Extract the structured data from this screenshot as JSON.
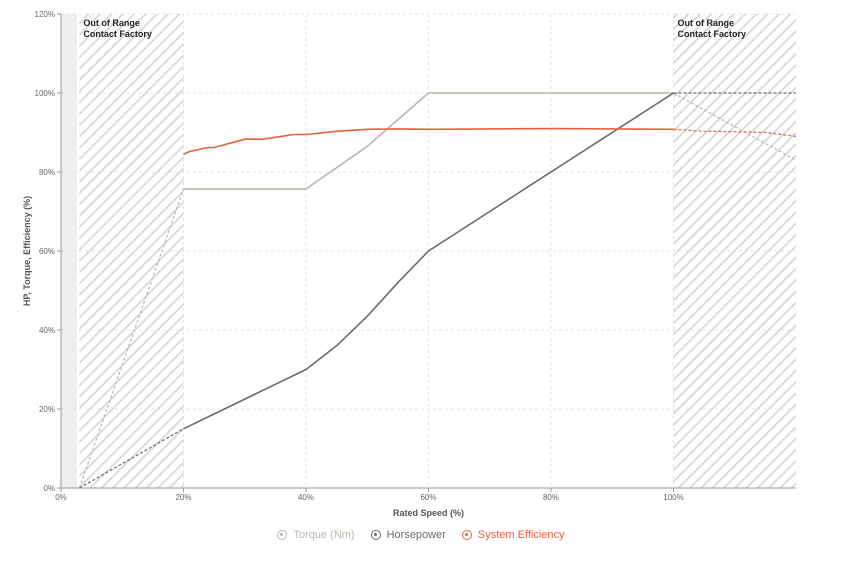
{
  "chart_data": {
    "type": "line",
    "title": "",
    "xlabel": "Rated Speed (%)",
    "ylabel": "HP, Torque, Efficiency (%)",
    "xlim": [
      0,
      120
    ],
    "ylim": [
      0,
      120
    ],
    "x_ticks": [
      {
        "value": 0,
        "label": "0%"
      },
      {
        "value": 20,
        "label": "20%"
      },
      {
        "value": 40,
        "label": "40%"
      },
      {
        "value": 60,
        "label": "60%"
      },
      {
        "value": 80,
        "label": "80%"
      },
      {
        "value": 100,
        "label": "100%"
      }
    ],
    "y_ticks": [
      {
        "value": 0,
        "label": "0%"
      },
      {
        "value": 20,
        "label": "20%"
      },
      {
        "value": 40,
        "label": "40%"
      },
      {
        "value": 60,
        "label": "60%"
      },
      {
        "value": 80,
        "label": "80%"
      },
      {
        "value": 100,
        "label": "100%"
      },
      {
        "value": 120,
        "label": "120%"
      }
    ],
    "grid": true,
    "legend_position": "bottom-center",
    "out_of_range_zones": [
      {
        "x_start": 3,
        "x_end": 20,
        "line1": "Out of Range",
        "line2": "Contact Factory"
      },
      {
        "x_start": 100,
        "x_end": 120,
        "line1": "Out of Range",
        "line2": "Contact Factory"
      }
    ],
    "series": [
      {
        "name": "Torque (Nm)",
        "color": "#bdb5aa",
        "values": [
          {
            "x": 20,
            "y": 75.7
          },
          {
            "x": 40,
            "y": 75.7
          },
          {
            "x": 50,
            "y": 86.5
          },
          {
            "x": 60,
            "y": 100
          },
          {
            "x": 100,
            "y": 100
          }
        ],
        "extension_low": [
          {
            "x": 3,
            "y": 0
          },
          {
            "x": 20,
            "y": 75.7
          }
        ],
        "extension_high": [
          {
            "x": 100,
            "y": 100
          },
          {
            "x": 120,
            "y": 83
          }
        ]
      },
      {
        "name": "Horsepower",
        "color": "#6b6b66",
        "values": [
          {
            "x": 20,
            "y": 15
          },
          {
            "x": 40,
            "y": 30
          },
          {
            "x": 45,
            "y": 36
          },
          {
            "x": 50,
            "y": 43.5
          },
          {
            "x": 55,
            "y": 52
          },
          {
            "x": 60,
            "y": 60
          },
          {
            "x": 100,
            "y": 100
          }
        ],
        "extension_low": [
          {
            "x": 3,
            "y": 0
          },
          {
            "x": 20,
            "y": 15
          }
        ],
        "extension_high": [
          {
            "x": 100,
            "y": 100
          },
          {
            "x": 120,
            "y": 100
          }
        ]
      },
      {
        "name": "System Efficiency",
        "color": "#e8603c",
        "values": [
          {
            "x": 20,
            "y": 84.5
          },
          {
            "x": 21,
            "y": 85.2
          },
          {
            "x": 24,
            "y": 86.2
          },
          {
            "x": 25,
            "y": 86.2
          },
          {
            "x": 30,
            "y": 88.3
          },
          {
            "x": 33,
            "y": 88.3
          },
          {
            "x": 38,
            "y": 89.5
          },
          {
            "x": 40,
            "y": 89.5
          },
          {
            "x": 45,
            "y": 90.3
          },
          {
            "x": 50,
            "y": 90.8
          },
          {
            "x": 55,
            "y": 90.9
          },
          {
            "x": 60,
            "y": 90.8
          },
          {
            "x": 70,
            "y": 90.9
          },
          {
            "x": 80,
            "y": 91
          },
          {
            "x": 90,
            "y": 90.9
          },
          {
            "x": 100,
            "y": 90.8
          }
        ],
        "extension_high": [
          {
            "x": 100,
            "y": 90.8
          },
          {
            "x": 105,
            "y": 90.3
          },
          {
            "x": 110,
            "y": 90.2
          },
          {
            "x": 115,
            "y": 90
          },
          {
            "x": 120,
            "y": 89
          }
        ]
      }
    ]
  }
}
